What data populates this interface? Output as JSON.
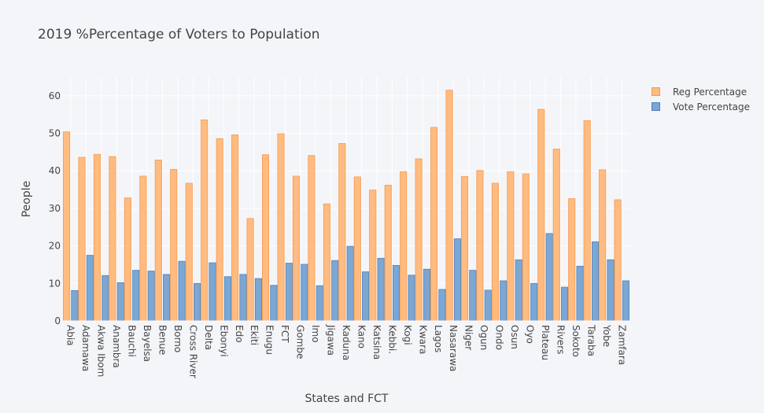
{
  "chart_data": {
    "type": "bar",
    "title": "2019 %Percentage of Voters to Population",
    "xlabel": "States and FCT",
    "ylabel": "People",
    "ylim": [
      0,
      65
    ],
    "yticks": [
      0,
      10,
      20,
      30,
      40,
      50,
      60
    ],
    "grid": true,
    "legend_position": "top-right",
    "categories": [
      "Abia",
      "Adamawa",
      "Akwa Ibom",
      "Anambra",
      "Bauchi",
      "Bayelsa",
      "Benue",
      "Borno",
      "Cross River",
      "Delta",
      "Ebonyi",
      "Edo",
      "Ekiti",
      "Enugu",
      "FCT",
      "Gombe",
      "Imo",
      "Jigawa",
      "Kaduna",
      "Kano",
      "Katsina",
      "Kebbi.",
      "Kogi",
      "Kwara",
      "Lagos",
      "Nasarawa",
      "Niger",
      "Ogun",
      "Ondo",
      "Osun",
      "Oyo",
      "Plateau",
      "Rivers",
      "Sokoto",
      "Taraba",
      "Yobe",
      "Zamfara"
    ],
    "series": [
      {
        "name": "Reg Percentage",
        "color": "#ffbb80",
        "border": "#f59a4f",
        "values": [
          50.4,
          43.6,
          44.4,
          43.8,
          32.8,
          38.6,
          42.9,
          40.4,
          36.7,
          53.6,
          48.6,
          49.6,
          27.3,
          44.3,
          49.9,
          38.6,
          44.1,
          31.2,
          47.3,
          38.4,
          34.9,
          36.2,
          39.8,
          43.2,
          51.6,
          61.5,
          38.5,
          40.1,
          36.7,
          39.8,
          39.2,
          56.4,
          45.8,
          32.6,
          53.4,
          40.3,
          32.3
        ]
      },
      {
        "name": "Vote Percentage",
        "color": "#7ba7d4",
        "border": "#4f82b9",
        "values": [
          8.1,
          17.5,
          12.1,
          10.2,
          13.5,
          13.3,
          12.4,
          15.9,
          10.0,
          15.5,
          11.8,
          12.4,
          11.3,
          9.5,
          15.4,
          15.1,
          9.4,
          16.1,
          19.9,
          13.1,
          16.7,
          14.8,
          12.2,
          13.8,
          8.4,
          21.9,
          13.5,
          8.2,
          10.7,
          16.3,
          10.0,
          23.3,
          9.0,
          14.6,
          21.1,
          16.3,
          10.7
        ]
      }
    ]
  }
}
